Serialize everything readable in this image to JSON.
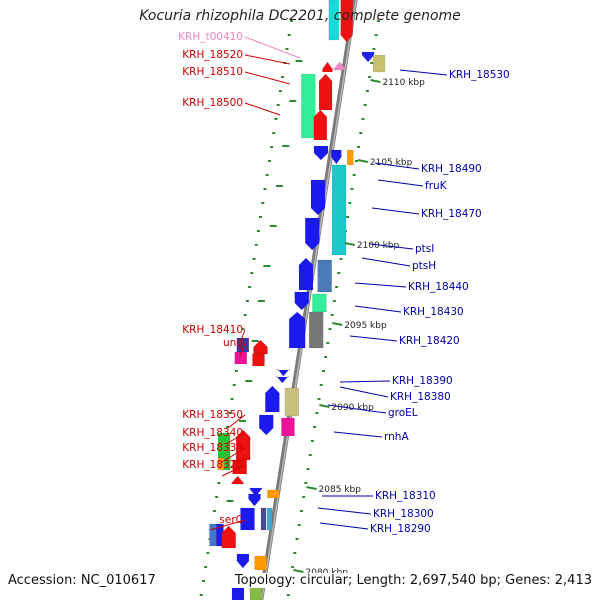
{
  "title": "Kocuria rhizophila DC2201, complete genome",
  "accession": "Accession: NC_010617",
  "topology": "Topology: circular; Length: 2,697,540 bp; Genes: 2,413",
  "colors": {
    "backbone": "#7a7a7a",
    "left_label": "#cc0000",
    "right_label": "#0000aa",
    "trna_label": "#ee88bb",
    "dots": "#2e8b2e"
  },
  "ticks": [
    {
      "label": "2110 kbp"
    },
    {
      "label": "2105 kbp"
    },
    {
      "label": "2100 kbp"
    },
    {
      "label": "2095 kbp"
    },
    {
      "label": "2090 kbp"
    },
    {
      "label": "2085 kbp"
    },
    {
      "label": "2080 kbp"
    }
  ],
  "left_labels": [
    {
      "name": "KRH_t00410",
      "kind": "trna"
    },
    {
      "name": "KRH_18520"
    },
    {
      "name": "KRH_18510"
    },
    {
      "name": "KRH_18500"
    },
    {
      "name": "KRH_18410"
    },
    {
      "name": "ung"
    },
    {
      "name": "KRH_18350"
    },
    {
      "name": "KRH_18340"
    },
    {
      "name": "KRH_18330"
    },
    {
      "name": "KRH_18320"
    },
    {
      "name": "serC"
    }
  ],
  "right_labels": [
    {
      "name": "KRH_18530"
    },
    {
      "name": "KRH_18490"
    },
    {
      "name": "fruK"
    },
    {
      "name": "KRH_18470"
    },
    {
      "name": "ptsI"
    },
    {
      "name": "ptsH"
    },
    {
      "name": "KRH_18440"
    },
    {
      "name": "KRH_18430"
    },
    {
      "name": "KRH_18420"
    },
    {
      "name": "KRH_18390"
    },
    {
      "name": "KRH_18380"
    },
    {
      "name": "groEL"
    },
    {
      "name": "rnhA"
    },
    {
      "name": "KRH_18310"
    },
    {
      "name": "KRH_18300"
    },
    {
      "name": "KRH_18290"
    }
  ]
}
